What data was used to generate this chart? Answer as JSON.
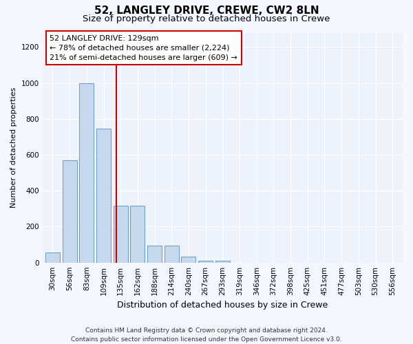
{
  "title": "52, LANGLEY DRIVE, CREWE, CW2 8LN",
  "subtitle": "Size of property relative to detached houses in Crewe",
  "xlabel": "Distribution of detached houses by size in Crewe",
  "ylabel": "Number of detached properties",
  "bar_color": "#c5d8ee",
  "bar_edge_color": "#6699cc",
  "bg_color": "#eef2fa",
  "grid_color": "#ffffff",
  "categories": [
    "30sqm",
    "56sqm",
    "83sqm",
    "109sqm",
    "135sqm",
    "162sqm",
    "188sqm",
    "214sqm",
    "240sqm",
    "267sqm",
    "293sqm",
    "319sqm",
    "346sqm",
    "372sqm",
    "398sqm",
    "425sqm",
    "451sqm",
    "477sqm",
    "503sqm",
    "530sqm",
    "556sqm"
  ],
  "values": [
    57,
    570,
    1000,
    745,
    315,
    315,
    95,
    95,
    35,
    12,
    12,
    0,
    0,
    0,
    0,
    0,
    0,
    0,
    0,
    0,
    0
  ],
  "vline_color": "#cc0000",
  "vline_pos": 3.75,
  "annotation_text": "52 LANGLEY DRIVE: 129sqm\n← 78% of detached houses are smaller (2,224)\n21% of semi-detached houses are larger (609) →",
  "annotation_box_color": "#ffffff",
  "annotation_box_edge": "#cc0000",
  "ylim": [
    0,
    1280
  ],
  "yticks": [
    0,
    200,
    400,
    600,
    800,
    1000,
    1200
  ],
  "footer": "Contains HM Land Registry data © Crown copyright and database right 2024.\nContains public sector information licensed under the Open Government Licence v3.0.",
  "title_fontsize": 11,
  "subtitle_fontsize": 9.5,
  "xlabel_fontsize": 9,
  "ylabel_fontsize": 8,
  "tick_fontsize": 7.5,
  "annotation_fontsize": 8,
  "footer_fontsize": 6.5
}
